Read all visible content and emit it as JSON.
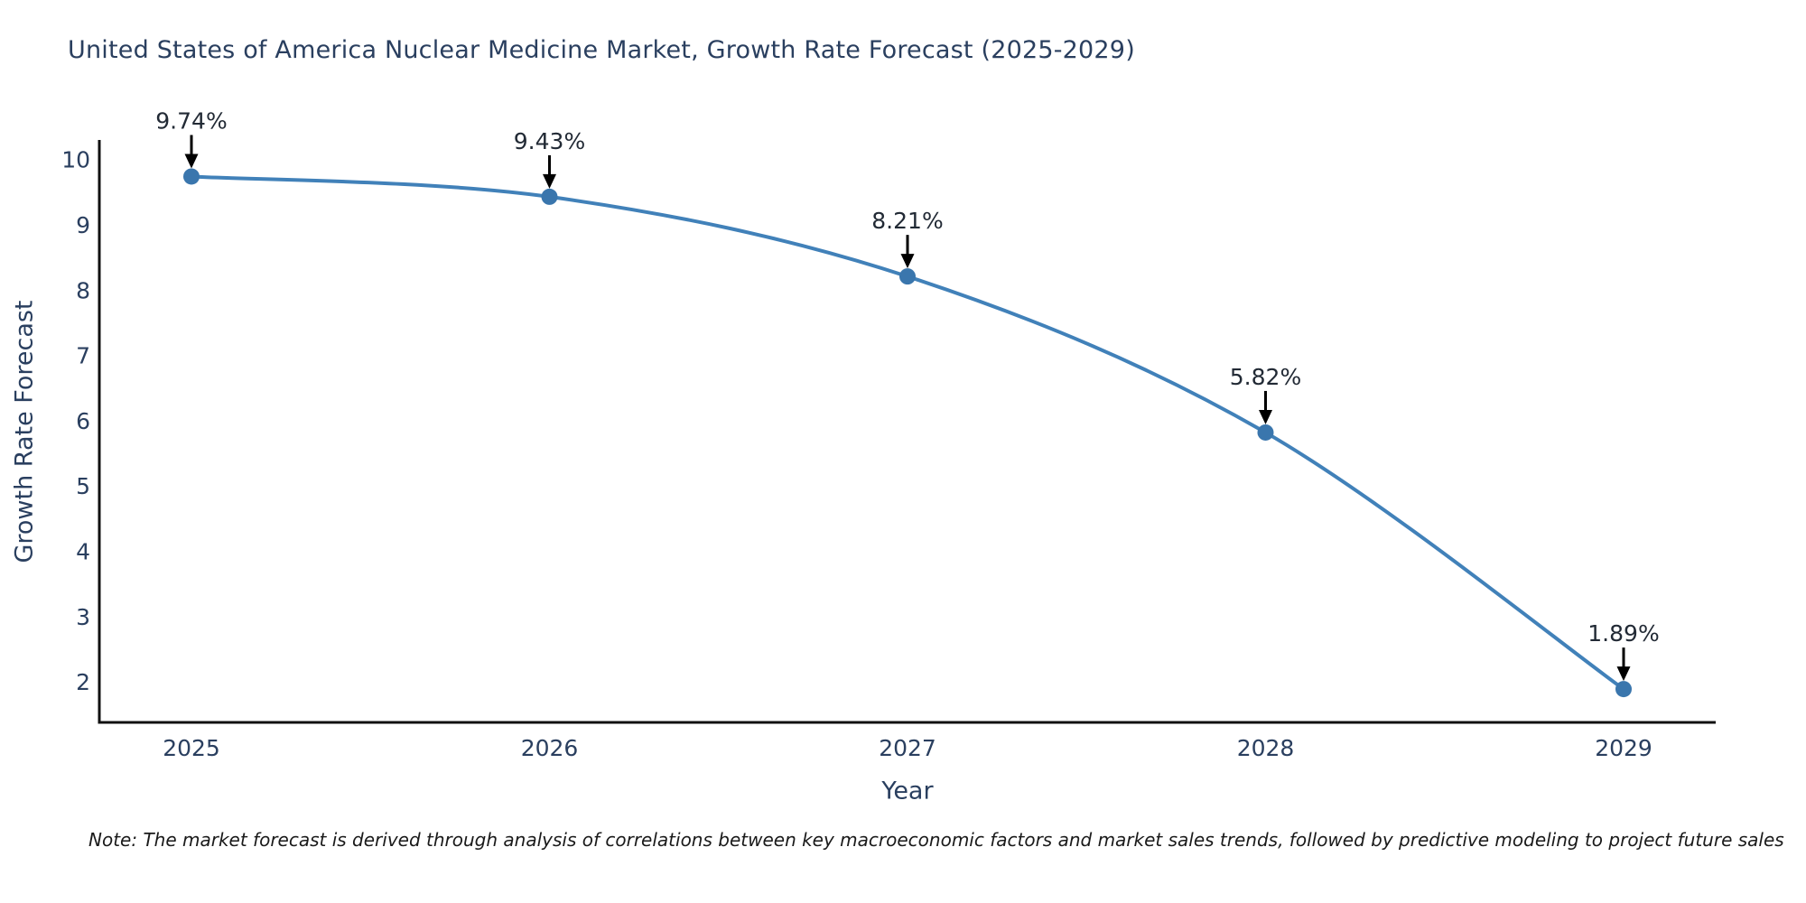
{
  "chart_data": {
    "type": "line",
    "title": "United States of America Nuclear Medicine Market, Growth Rate Forecast (2025-2029)",
    "xlabel": "Year",
    "ylabel": "Growth Rate Forecast",
    "categories": [
      "2025",
      "2026",
      "2027",
      "2028",
      "2029"
    ],
    "values": [
      9.74,
      9.43,
      8.21,
      5.82,
      1.89
    ],
    "point_labels": [
      "9.74%",
      "9.43%",
      "8.21%",
      "5.82%",
      "1.89%"
    ],
    "yticks": [
      2,
      3,
      4,
      5,
      6,
      7,
      8,
      9,
      10
    ],
    "ylim": [
      1.38,
      10.3
    ],
    "grid": false,
    "legend": "none",
    "line_shape": "spline",
    "annotation_style": "label-above-with-down-arrow",
    "colors": {
      "line": "#4181B9",
      "marker": "#3A76AD",
      "axis": "#111111",
      "text": "#2A3F5F",
      "annotation": "#222A35",
      "arrow": "#000000",
      "background": "#FFFFFF"
    }
  },
  "note": {
    "text": "Note: The market forecast is derived through analysis of correlations between key macroeconomic factors and market sales trends, followed by predictive modeling to project future sales"
  }
}
